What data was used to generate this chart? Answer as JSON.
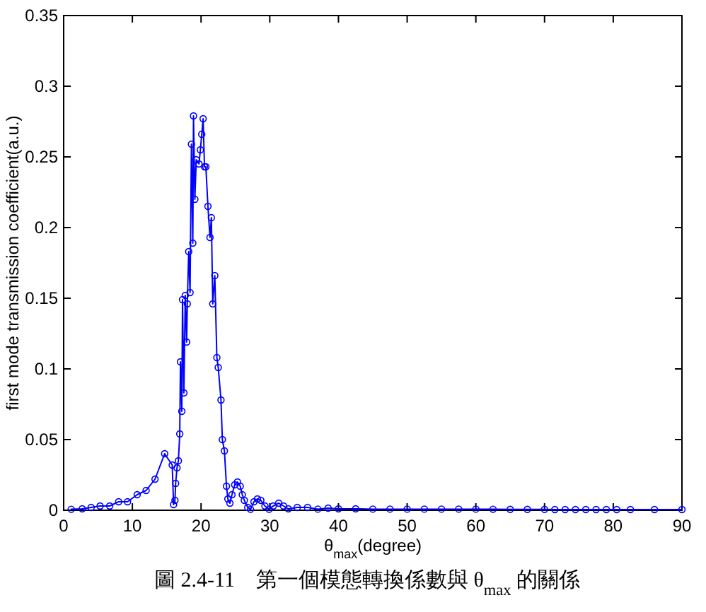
{
  "chart_data": {
    "type": "line",
    "xlabel": "θ$_{max}$(degree)",
    "ylabel": "first mode transmission coefficient(a.u.)",
    "annotations": [
      "圖 2.4-11　第一個模態轉換係數與 θ$_{max}$ 的關係"
    ],
    "xlim": [
      0,
      90
    ],
    "xticks": [
      0,
      10,
      20,
      30,
      40,
      50,
      60,
      70,
      80,
      90
    ],
    "ylim": [
      0,
      0.35
    ],
    "yticks": [
      0,
      0.05,
      0.1,
      0.15,
      0.2,
      0.25,
      0.3,
      0.35
    ],
    "grid": false,
    "marker": "circle",
    "line_style": "solid",
    "series": [
      {
        "color": "#0000ff",
        "x": [
          1.1,
          2.7,
          4,
          5.3,
          6.7,
          8,
          9.3,
          10.7,
          12,
          13.3,
          14.7,
          15.8,
          16,
          16.2,
          16.3,
          16.5,
          16.7,
          16.9,
          17,
          17.2,
          17.3,
          17.5,
          17.7,
          17.9,
          18,
          18.2,
          18.4,
          18.6,
          18.8,
          18.9,
          19.1,
          19.3,
          19.7,
          19.9,
          20.1,
          20.3,
          20.5,
          20.7,
          21,
          21.3,
          21.5,
          21.7,
          22,
          22.3,
          22.5,
          22.9,
          23.1,
          23.4,
          23.7,
          23.9,
          24.2,
          24.5,
          24.9,
          25.3,
          25.7,
          26,
          26.3,
          26.8,
          27.2,
          27.7,
          28.2,
          28.7,
          29.3,
          29.9,
          30.5,
          31.3,
          32,
          32.7,
          34,
          35.5,
          37,
          38.5,
          40,
          42.5,
          45,
          47.5,
          50,
          52.5,
          55,
          57.5,
          60,
          62.5,
          65,
          67.5,
          70,
          71.5,
          73,
          74.5,
          76,
          77.5,
          79,
          80.5,
          82.5,
          86,
          90
        ],
        "values": [
          0.0007,
          0.001,
          0.002,
          0.003,
          0.003,
          0.006,
          0.006,
          0.011,
          0.014,
          0.022,
          0.04,
          0.032,
          0.004,
          0.007,
          0.019,
          0.03,
          0.035,
          0.054,
          0.105,
          0.07,
          0.149,
          0.083,
          0.152,
          0.119,
          0.146,
          0.183,
          0.154,
          0.259,
          0.189,
          0.279,
          0.22,
          0.248,
          0.245,
          0.255,
          0.266,
          0.277,
          0.243,
          0.243,
          0.215,
          0.193,
          0.207,
          0.146,
          0.166,
          0.108,
          0.101,
          0.078,
          0.05,
          0.042,
          0.017,
          0.008,
          0.005,
          0.011,
          0.018,
          0.02,
          0.017,
          0.011,
          0.007,
          0.002,
          0.0007,
          0.006,
          0.008,
          0.007,
          0.003,
          0.0007,
          0.003,
          0.005,
          0.003,
          0.001,
          0.002,
          0.002,
          0.0008,
          0.0015,
          0.001,
          0.001,
          0.0008,
          0.0008,
          0.0008,
          0.0008,
          0.0008,
          0.0008,
          0.0008,
          0.0007,
          0.0006,
          0.0006,
          0.0006,
          0.0005,
          0.0005,
          0.0005,
          0.0005,
          0.0005,
          0.0005,
          0.0005,
          0.0005,
          0.0005,
          0.0005
        ]
      }
    ]
  }
}
